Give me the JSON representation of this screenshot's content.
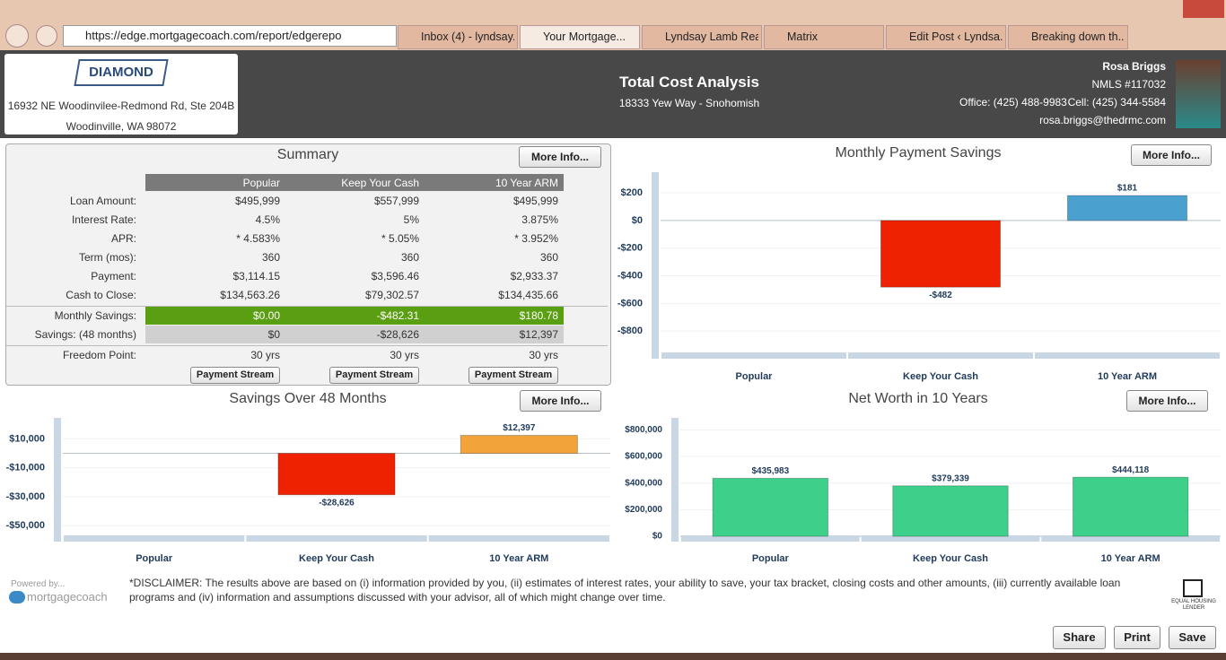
{
  "browser": {
    "url": "https://edge.mortgagecoach.com/report/edgerepo",
    "tabs": [
      "Inbox (4) - lyndsay...",
      "Your Mortgage...",
      "Lyndsay Lamb Rea...",
      "Matrix",
      "Edit Post ‹ Lyndsa...",
      "Breaking down th..."
    ]
  },
  "header": {
    "logo": "DIAMOND",
    "address": [
      "16932 NE Woodinvilee-Redmond Rd, Ste 204B",
      "Woodinville, WA 98072"
    ],
    "title": "Total Cost Analysis",
    "subtitle": "18333 Yew Way - Snohomish",
    "agent": {
      "name": "Rosa Briggs",
      "nmls": "NMLS #117032",
      "office": "Office: (425) 488-9983",
      "cell": "Cell: (425) 344-5584",
      "email": "rosa.briggs@thedrmc.com"
    }
  },
  "summary": {
    "title": "Summary",
    "more_info": "More Info...",
    "columns": [
      "Popular",
      "Keep Your Cash",
      "10 Year ARM"
    ],
    "rows": [
      {
        "label": "Loan Amount:",
        "values": [
          "$495,999",
          "$557,999",
          "$495,999"
        ]
      },
      {
        "label": "Interest Rate:",
        "values": [
          "4.5%",
          "5%",
          "3.875%"
        ]
      },
      {
        "label": "APR:",
        "values": [
          "* 4.583%",
          "* 5.05%",
          "* 3.952%"
        ]
      },
      {
        "label": "Term (mos):",
        "values": [
          "360",
          "360",
          "360"
        ]
      },
      {
        "label": "Payment:",
        "values": [
          "$3,114.15",
          "$3,596.46",
          "$2,933.37"
        ]
      },
      {
        "label": "Cash to Close:",
        "values": [
          "$134,563.26",
          "$79,302.57",
          "$134,435.66"
        ]
      },
      {
        "label": "Monthly Savings:",
        "values": [
          "$0.00",
          "-$482.31",
          "$180.78"
        ],
        "fill": "#5a9e12",
        "text_color": "#ffffff"
      },
      {
        "label": "Savings: (48 months)",
        "values": [
          "$0",
          "-$28,626",
          "$12,397"
        ],
        "fill": "#d0d0d0",
        "text_color": "#333333"
      },
      {
        "label": "Freedom Point:",
        "values": [
          "30 yrs",
          "30 yrs",
          "30 yrs"
        ]
      }
    ],
    "button": "Payment Stream"
  },
  "chart_data": [
    {
      "type": "bar",
      "title": "Monthly Payment Savings",
      "more_info": "More Info...",
      "categories": [
        "Popular",
        "Keep Your Cash",
        "10 Year ARM"
      ],
      "values": [
        0,
        -482,
        181
      ],
      "value_labels": [
        null,
        "-$482",
        "$181"
      ],
      "colors": [
        "#ee2200",
        "#ee2200",
        "#4aa0cf"
      ],
      "ylim": [
        -1000,
        350
      ],
      "yticks": [
        {
          "value": 200,
          "label": "$200"
        },
        {
          "value": 0,
          "label": "$0"
        },
        {
          "value": -200,
          "label": "-$200"
        },
        {
          "value": -400,
          "label": "-$400"
        },
        {
          "value": -600,
          "label": "-$600"
        },
        {
          "value": -800,
          "label": "-$800"
        }
      ],
      "grid": true
    },
    {
      "type": "bar",
      "title": "Savings Over 48 Months",
      "more_info": "More Info...",
      "categories": [
        "Popular",
        "Keep Your Cash",
        "10 Year ARM"
      ],
      "values": [
        0,
        -28626,
        12397
      ],
      "value_labels": [
        null,
        "-$28,626",
        "$12,397"
      ],
      "colors": [
        "#ee2200",
        "#ee2200",
        "#f2a33a"
      ],
      "ylim": [
        -61000,
        24500
      ],
      "yticks": [
        {
          "value": 10000,
          "label": "$10,000"
        },
        {
          "value": -10000,
          "label": "-$10,000"
        },
        {
          "value": -30000,
          "label": "-$30,000"
        },
        {
          "value": -50000,
          "label": "-$50,000"
        }
      ],
      "grid": true
    },
    {
      "type": "bar",
      "title": "Net Worth in 10 Years",
      "more_info": "More Info...",
      "categories": [
        "Popular",
        "Keep Your Cash",
        "10 Year ARM"
      ],
      "values": [
        435983,
        379339,
        444118
      ],
      "value_labels": [
        "$435,983",
        "$379,339",
        "$444,118"
      ],
      "colors": [
        "#3dd08a",
        "#3dd08a",
        "#3dd08a"
      ],
      "ylim": [
        -40000,
        890000
      ],
      "yticks": [
        {
          "value": 800000,
          "label": "$800,000"
        },
        {
          "value": 600000,
          "label": "$600,000"
        },
        {
          "value": 400000,
          "label": "$400,000"
        },
        {
          "value": 200000,
          "label": "$200,000"
        },
        {
          "value": 0,
          "label": "$0"
        }
      ],
      "grid": true
    }
  ],
  "footer": {
    "powered_by": "Powered by...",
    "brand": "mortgagecoach",
    "disclaimer": "*DISCLAIMER: The results above are based on (i) information provided by you, (ii) estimates of interest rates, your ability to save, your tax bracket, closing costs and other amounts, (iii) currently available loan programs and (iv) information and assumptions discussed with your advisor, all of which might change over time.",
    "housing": "EQUAL HOUSING LENDER",
    "buttons": [
      "Share",
      "Print",
      "Save"
    ]
  }
}
